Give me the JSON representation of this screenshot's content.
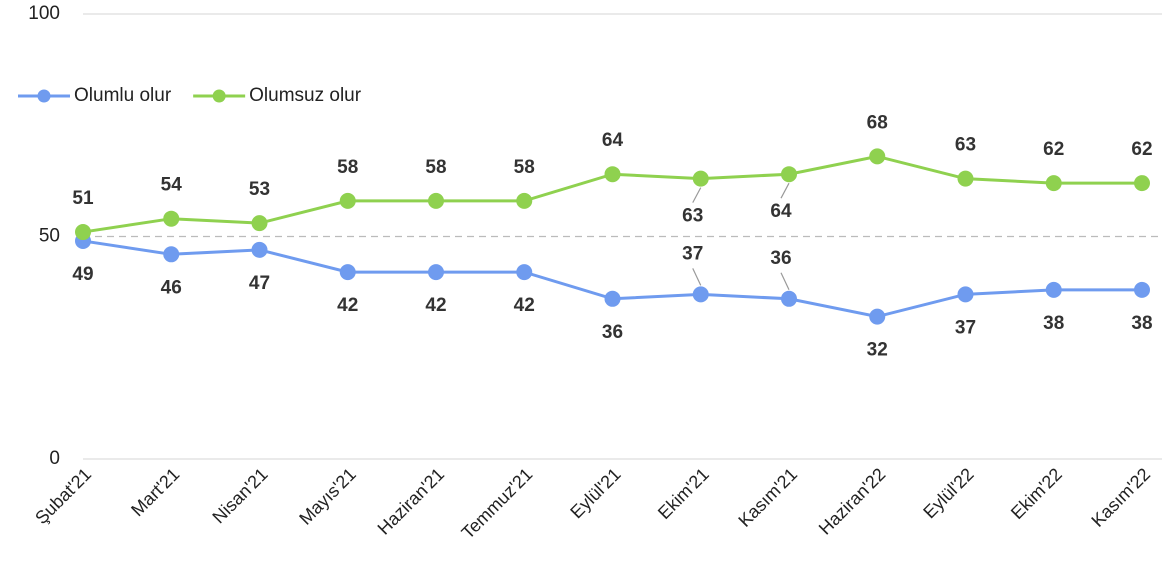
{
  "chart_data": {
    "type": "line",
    "categories": [
      "Şubat'21",
      "Mart'21",
      "Nisan'21",
      "Mayıs'21",
      "Haziran'21",
      "Temmuz'21",
      "Eylül'21",
      "Ekim'21",
      "Kasım'21",
      "Haziran'22",
      "Eylül'22",
      "Ekim'22",
      "Kasım'22"
    ],
    "series": [
      {
        "name": "Olumlu olur",
        "color": "#6f9bef",
        "values": [
          49,
          46,
          47,
          42,
          42,
          42,
          36,
          37,
          36,
          32,
          37,
          38,
          38
        ]
      },
      {
        "name": "Olumsuz olur",
        "color": "#8fd14f",
        "values": [
          51,
          54,
          53,
          58,
          58,
          58,
          64,
          63,
          64,
          68,
          63,
          62,
          62
        ]
      }
    ],
    "ylim": [
      0,
      100
    ],
    "yticks": [
      0,
      50,
      100
    ],
    "grid": true,
    "legend": "top-left"
  }
}
